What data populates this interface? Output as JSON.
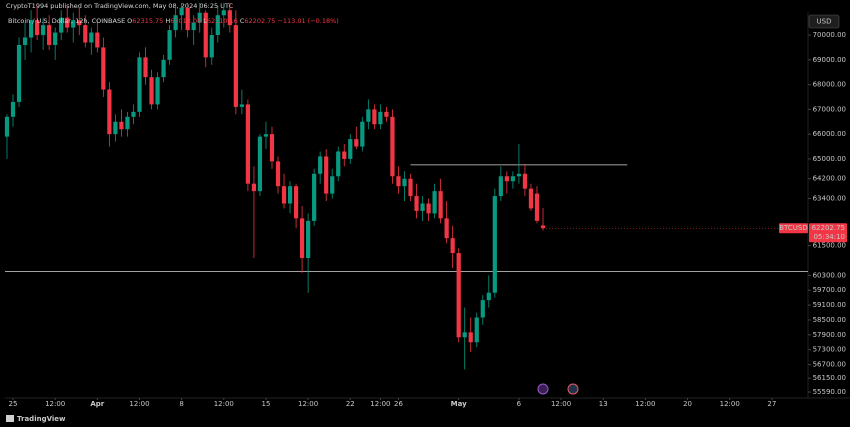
{
  "header": {
    "credit": "CryptoT1994 published on TradingView.com, May 08, 2024 06:25 UTC",
    "brand": "TradingView"
  },
  "chart_data": {
    "type": "candlestick",
    "legend_title": "Bitcoin / U.S. Dollar, 12h, COINBASE",
    "ohlc_labels": [
      "O",
      "H",
      "L",
      "C"
    ],
    "change": "−113.01 (−0.18%)",
    "currency": "USD",
    "symbol": "BTCUSD",
    "countdown": "05:34:10",
    "up_color": "#089981",
    "down_color": "#f23645",
    "xlim": [
      -0.33,
      133
    ],
    "xticks": [
      {
        "value": 1,
        "label": "25"
      },
      {
        "value": 8,
        "label": "12:00"
      },
      {
        "value": 15,
        "label": "Apr"
      },
      {
        "value": 22,
        "label": "12:00"
      },
      {
        "value": 29,
        "label": "8"
      },
      {
        "value": 36,
        "label": "12:00"
      },
      {
        "value": 43,
        "label": "15"
      },
      {
        "value": 50,
        "label": "12:00"
      },
      {
        "value": 57,
        "label": "22"
      },
      {
        "value": 62,
        "label": "12:00"
      },
      {
        "value": 65,
        "label": "26"
      },
      {
        "value": 75,
        "label": "May"
      },
      {
        "value": 85,
        "label": "6"
      },
      {
        "value": 92,
        "label": "12:00"
      },
      {
        "value": 99,
        "label": "13"
      },
      {
        "value": 106,
        "label": "12:00"
      },
      {
        "value": 113,
        "label": "20"
      },
      {
        "value": 120,
        "label": "12:00"
      },
      {
        "value": 127,
        "label": "27"
      }
    ],
    "ylim": [
      55350,
      70930
    ],
    "yticks": [
      {
        "value": 70000,
        "label": "70000.00"
      },
      {
        "value": 69000,
        "label": "69000.00"
      },
      {
        "value": 68000,
        "label": "68000.00"
      },
      {
        "value": 67000,
        "label": "67000.00"
      },
      {
        "value": 66000,
        "label": "66000.00"
      },
      {
        "value": 65000,
        "label": "65000.00"
      },
      {
        "value": 64200,
        "label": "64200.00"
      },
      {
        "value": 63400,
        "label": "63400.00"
      },
      {
        "value": 61500,
        "label": "61500.00"
      },
      {
        "value": 60300,
        "label": "60300.00"
      },
      {
        "value": 59700,
        "label": "59700.00"
      },
      {
        "value": 59100,
        "label": "59100.00"
      },
      {
        "value": 58500,
        "label": "58500.00"
      },
      {
        "value": 57900,
        "label": "57900.00"
      },
      {
        "value": 57300,
        "label": "57300.00"
      },
      {
        "value": 56700,
        "label": "56700.00"
      },
      {
        "value": 56150,
        "label": "56150.00"
      },
      {
        "value": 55590,
        "label": "55590.00"
      }
    ],
    "hlines": [
      {
        "value": 60450
      },
      {
        "value": 64760,
        "from": 67,
        "to": 103
      }
    ],
    "open": [
      65900,
      66700,
      67300,
      69600,
      69900,
      70600,
      70000,
      70400,
      69600,
      70100,
      70700,
      70300,
      70600,
      70400,
      69700,
      70100,
      69500,
      67800,
      66000,
      66500,
      66200,
      66700,
      66900,
      69100,
      68300,
      67200,
      68300,
      69000,
      70200,
      70800,
      71100,
      70200,
      70500,
      70900,
      69100,
      70000,
      70800,
      71000,
      70400,
      67100,
      67200,
      64000,
      63700,
      65900,
      66000,
      64900,
      63900,
      63200,
      63900,
      62600,
      61000,
      62500,
      64400,
      65100,
      63600,
      64300,
      65300,
      65000,
      65800,
      65500,
      66500,
      67000,
      66400,
      66900,
      66700,
      64300,
      63900,
      64200,
      63500,
      62900,
      63200,
      62800,
      63700,
      62600,
      61800,
      61200,
      57800,
      58000,
      57600,
      58600,
      59300,
      59600,
      63500,
      64300,
      64100,
      64300,
      64400,
      63800,
      63600,
      62315.75
    ],
    "high": [
      66800,
      67600,
      69900,
      70500,
      71000,
      71200,
      70700,
      70800,
      70300,
      71000,
      71200,
      70900,
      71100,
      70800,
      70300,
      70600,
      69900,
      68100,
      66800,
      67000,
      66900,
      67200,
      69300,
      69500,
      68600,
      68500,
      69200,
      70400,
      71200,
      71300,
      71300,
      70800,
      71300,
      71000,
      70300,
      71200,
      71300,
      71300,
      71000,
      67800,
      67400,
      64700,
      66000,
      66500,
      66300,
      65100,
      64400,
      64100,
      64000,
      63100,
      62800,
      64600,
      65300,
      65400,
      64600,
      65500,
      65600,
      66000,
      66300,
      66700,
      67400,
      67200,
      67200,
      67100,
      67000,
      64700,
      64500,
      64400,
      64000,
      63500,
      63400,
      64000,
      64200,
      63300,
      62300,
      61400,
      59000,
      58600,
      58800,
      59500,
      60300,
      63800,
      64700,
      64500,
      64500,
      65600,
      64800,
      64000,
      63900,
      63013.05
    ],
    "low": [
      65000,
      66300,
      67100,
      69000,
      69300,
      69800,
      69400,
      69400,
      69000,
      69800,
      70100,
      69700,
      70000,
      69500,
      69200,
      69300,
      67500,
      65500,
      65700,
      65900,
      65900,
      66400,
      66700,
      68000,
      67000,
      67000,
      68100,
      68800,
      69900,
      70200,
      69900,
      69600,
      70100,
      68700,
      68800,
      69700,
      70300,
      70100,
      66800,
      66800,
      63700,
      61000,
      63500,
      65400,
      64600,
      63600,
      63000,
      62800,
      62200,
      60400,
      59600,
      62300,
      64000,
      63300,
      63400,
      64100,
      64700,
      64800,
      65400,
      65300,
      66200,
      66200,
      66200,
      66500,
      64000,
      63600,
      63300,
      63300,
      62600,
      62500,
      62500,
      62600,
      62400,
      61600,
      60600,
      57600,
      56500,
      57200,
      57400,
      58300,
      59000,
      59400,
      63300,
      63600,
      63800,
      64000,
      63500,
      62900,
      62400,
      62110.16
    ],
    "close": [
      66700,
      67300,
      69600,
      69900,
      70600,
      70000,
      70400,
      69600,
      70100,
      70700,
      70300,
      70600,
      70400,
      69700,
      70100,
      69500,
      67800,
      66000,
      66500,
      66200,
      66700,
      66900,
      69100,
      68300,
      67200,
      68300,
      69000,
      70200,
      70800,
      71100,
      70200,
      70500,
      70900,
      69100,
      70000,
      70800,
      71000,
      70400,
      67100,
      67200,
      64000,
      63700,
      65900,
      66000,
      64900,
      63900,
      63200,
      63900,
      62600,
      61000,
      62500,
      64400,
      65100,
      63600,
      64300,
      65300,
      65000,
      65800,
      65500,
      66500,
      67000,
      66400,
      66900,
      66700,
      64300,
      63900,
      64200,
      63500,
      62900,
      63200,
      62800,
      63700,
      62600,
      61800,
      61200,
      57800,
      58000,
      57600,
      58600,
      59300,
      59600,
      63500,
      64300,
      64100,
      64300,
      64400,
      63800,
      63000,
      62500,
      62202.75
    ]
  }
}
